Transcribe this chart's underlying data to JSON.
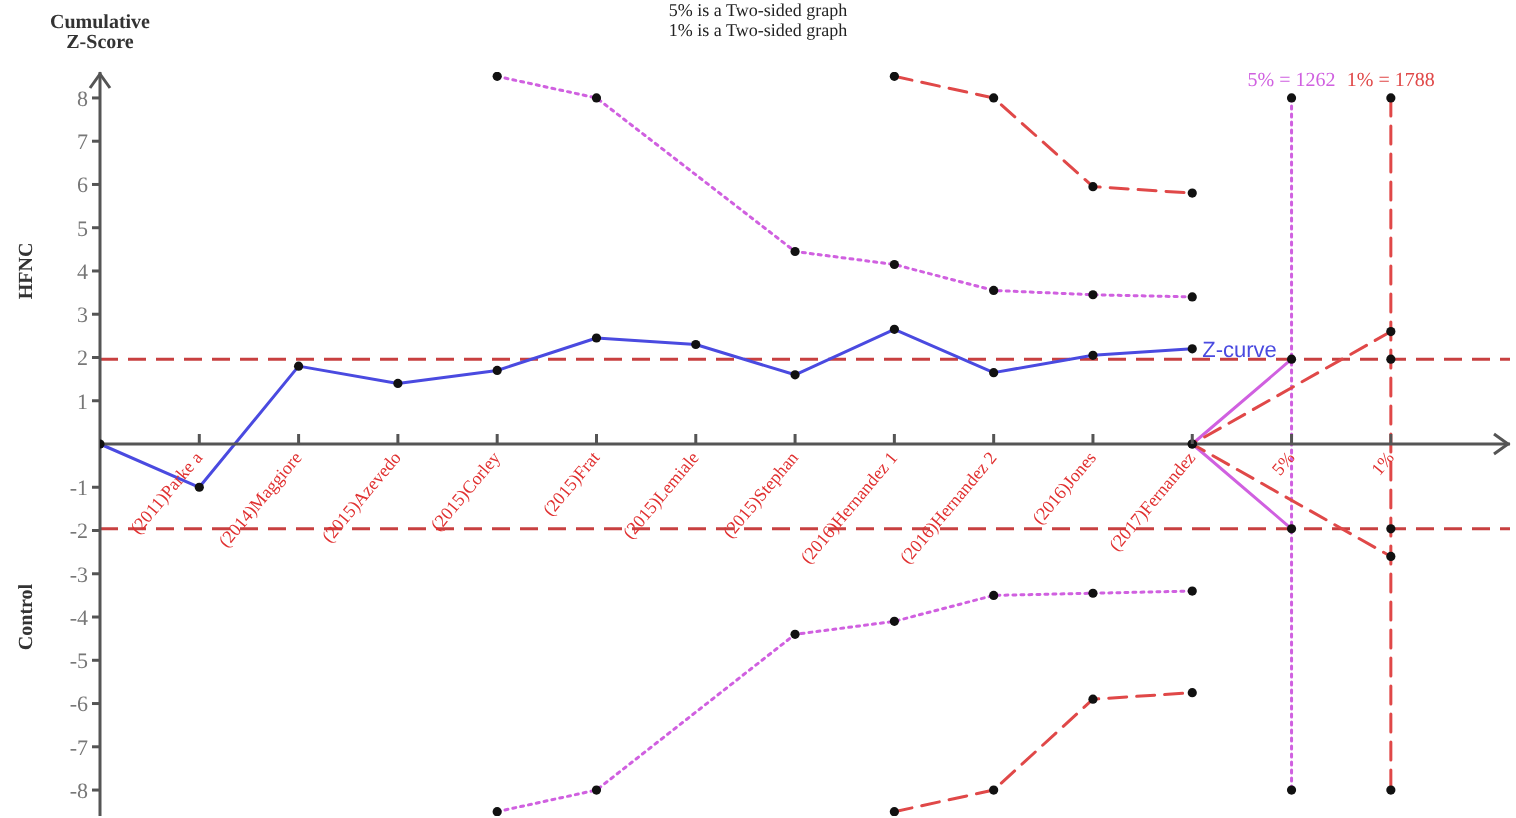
{
  "chart_data": {
    "type": "line",
    "title": "5% is a Two-sided graph",
    "subtitle": "1% is a Two-sided graph",
    "ylabel": "Cumulative Z-Score",
    "annotations": [
      "HFNC",
      "Control",
      {
        "text": "5% = 1262",
        "x": "5%",
        "y": 8
      },
      {
        "text": "1% = 1788",
        "x": "1%",
        "y": 8
      }
    ],
    "categories": [
      null,
      "(2011)Parke a",
      "(2014)Maggiore",
      "(2015)Azevedo",
      "(2015)Corley",
      "(2015)Frat",
      "(2015)Lemiale",
      "(2015)Stephan",
      "(2016)Hernandez 1",
      "(2016)Hernandez 2",
      "(2016)Jones",
      "(2017)Fernandez",
      "5%",
      "1%"
    ],
    "ylim": [
      -8.6,
      8.6
    ],
    "yticks": [
      -8,
      -7,
      -6,
      -5,
      -4,
      -3,
      -2,
      -1,
      1,
      2,
      3,
      4,
      5,
      6,
      7,
      8
    ],
    "grid": false,
    "legend": false,
    "marker": "circle",
    "ref_lines": [
      {
        "axis": "y",
        "value": 1.96,
        "color": "#c84040",
        "line_style": "dashed"
      },
      {
        "axis": "y",
        "value": -1.96,
        "color": "#c84040",
        "line_style": "dashed"
      }
    ],
    "series": [
      {
        "name": "Z-curve",
        "color": "#4a4ae0",
        "line_style": "solid",
        "values": [
          0,
          -1.0,
          1.8,
          1.4,
          1.7,
          2.45,
          2.3,
          1.6,
          2.65,
          1.65,
          2.05,
          2.2,
          null,
          null
        ]
      },
      {
        "color": "#d060e0",
        "line_style": "dotted",
        "values": [
          null,
          null,
          null,
          null,
          8.5,
          8.0,
          null,
          4.45,
          4.15,
          3.55,
          3.45,
          3.4,
          null,
          null
        ]
      },
      {
        "color": "#d060e0",
        "line_style": "dotted",
        "values": [
          null,
          null,
          null,
          null,
          -8.5,
          -8.0,
          null,
          -4.4,
          -4.1,
          -3.5,
          -3.45,
          -3.4,
          null,
          null
        ]
      },
      {
        "color": "#e04848",
        "line_style": "dashed",
        "values": [
          null,
          null,
          null,
          null,
          null,
          null,
          null,
          null,
          8.5,
          8.0,
          5.95,
          5.8,
          null,
          null
        ]
      },
      {
        "color": "#e04848",
        "line_style": "dashed",
        "values": [
          null,
          null,
          null,
          null,
          null,
          null,
          null,
          null,
          -8.5,
          -8.0,
          -5.9,
          -5.75,
          null,
          null
        ]
      },
      {
        "color": "#d060e0",
        "line_style": "dotted",
        "x": [
          "5%",
          "5%"
        ],
        "values": [
          8,
          -8
        ]
      },
      {
        "color": "#e04848",
        "line_style": "dashed",
        "x": [
          "1%",
          "1%",
          "1%",
          "1%"
        ],
        "values": [
          8,
          1.96,
          -1.96,
          -8
        ]
      },
      {
        "color": "#d060e0",
        "line_style": "solid",
        "x": [
          "5%",
          "(2017)Fernandez",
          "5%"
        ],
        "values": [
          1.96,
          0,
          -1.96
        ]
      },
      {
        "color": "#e04848",
        "line_style": "dashed",
        "x": [
          "1%",
          "(2017)Fernandez",
          "1%"
        ],
        "values": [
          2.6,
          0,
          -2.6
        ]
      }
    ]
  }
}
